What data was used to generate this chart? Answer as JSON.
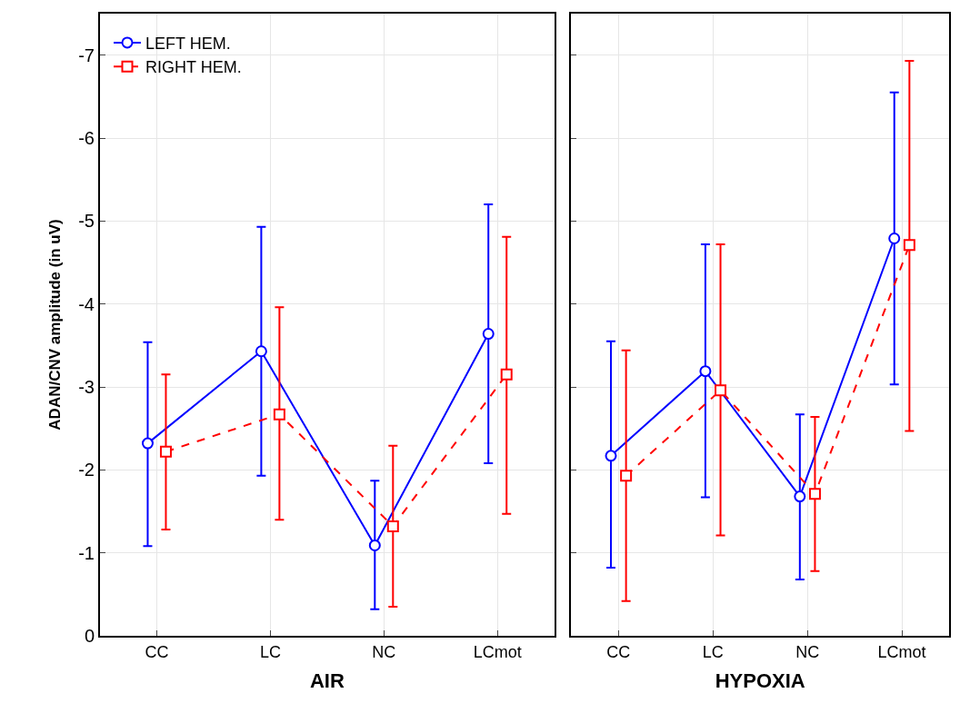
{
  "chart_data": [
    {
      "type": "line",
      "xlabel": "AIR",
      "ylabel": "ADAN/CNV amplitude (in uV)",
      "categories": [
        "CC",
        "LC",
        "NC",
        "LCmot"
      ],
      "ylim": [
        0,
        -7.5
      ],
      "yticks": [
        0,
        -1,
        -2,
        -3,
        -4,
        -5,
        -6,
        -7
      ],
      "grid": true,
      "legend": "top left",
      "series": [
        {
          "name": "LEFT HEM.",
          "color": "#0000ff",
          "marker": "circle",
          "line_style": "solid",
          "values": [
            -2.32,
            -3.43,
            -1.09,
            -3.64
          ],
          "errors": [
            [
              -3.54,
              -1.08
            ],
            [
              -4.93,
              -1.93
            ],
            [
              -1.87,
              -0.32
            ],
            [
              -5.2,
              -2.08
            ]
          ]
        },
        {
          "name": "RIGHT HEM.",
          "color": "#ff0000",
          "marker": "square",
          "line_style": "dashed",
          "values": [
            -2.22,
            -2.67,
            -1.32,
            -3.15
          ],
          "errors": [
            [
              -3.15,
              -1.28
            ],
            [
              -3.96,
              -1.4
            ],
            [
              -2.29,
              -0.35
            ],
            [
              -4.81,
              -1.47
            ]
          ]
        }
      ]
    },
    {
      "type": "line",
      "xlabel": "HYPOXIA",
      "categories": [
        "CC",
        "LC",
        "NC",
        "LCmot"
      ],
      "ylim": [
        0,
        -7.5
      ],
      "yticks": [
        0,
        -1,
        -2,
        -3,
        -4,
        -5,
        -6,
        -7
      ],
      "grid": true,
      "tick_labels": "x",
      "series": [
        {
          "color": "#0000ff",
          "marker": "circle",
          "line_style": "solid",
          "values": [
            -2.17,
            -3.19,
            -1.68,
            -4.79
          ],
          "errors": [
            [
              -3.55,
              -0.82
            ],
            [
              -4.72,
              -1.67
            ],
            [
              -2.67,
              -0.68
            ],
            [
              -6.55,
              -3.03
            ]
          ]
        },
        {
          "color": "#ff0000",
          "marker": "square",
          "line_style": "dashed",
          "values": [
            -1.93,
            -2.96,
            -1.71,
            -4.71
          ],
          "errors": [
            [
              -3.44,
              -0.42
            ],
            [
              -4.72,
              -1.21
            ],
            [
              -2.64,
              -0.78
            ],
            [
              -6.93,
              -2.47
            ]
          ]
        }
      ]
    }
  ]
}
